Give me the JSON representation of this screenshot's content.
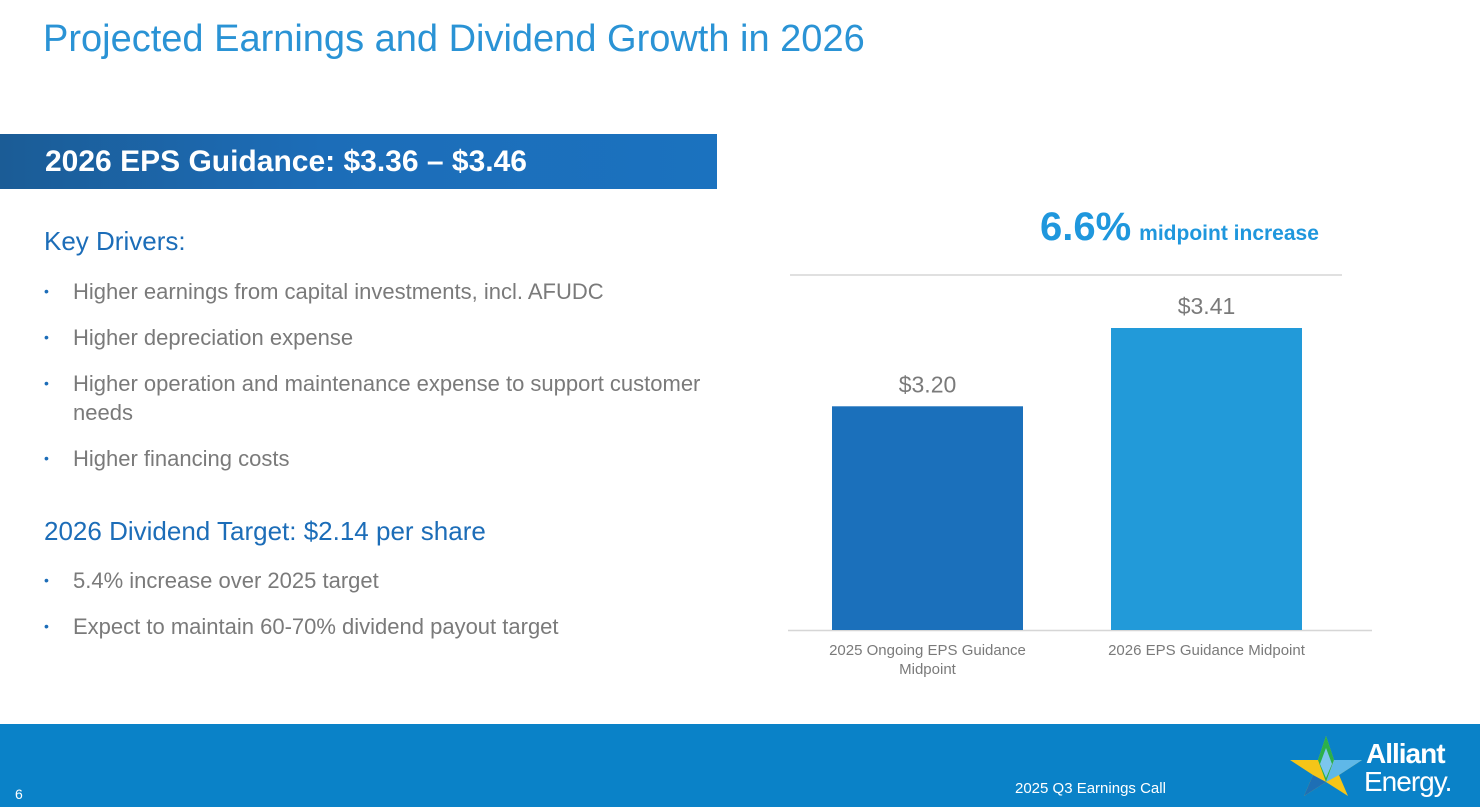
{
  "slide": {
    "title": "Projected Earnings and Dividend Growth in 2026",
    "banner": "2026 EPS Guidance: $3.36 – $3.46",
    "key_drivers": {
      "heading": "Key Drivers:",
      "bullets": [
        "Higher earnings from capital investments, incl. AFUDC",
        "Higher depreciation expense",
        "Higher operation and maintenance expense to support customer needs",
        "Higher financing costs"
      ]
    },
    "dividend": {
      "heading": "2026 Dividend Target: $2.14 per share",
      "bullets": [
        "5.4% increase over 2025 target",
        "Expect to maintain 60-70% dividend payout target"
      ]
    },
    "bullet_glyph": "•",
    "highlight": {
      "value": "6.6%",
      "label": "midpoint increase"
    },
    "footer": {
      "page_number": "6",
      "event": "2025 Q3 Earnings Call",
      "logo_line1": "Alliant",
      "logo_line2": "Energy."
    }
  },
  "colors": {
    "title": "#2a93d5",
    "banner": "#1c6db8",
    "bar_2025": "#1b70bb",
    "bar_2026": "#229ad9",
    "footer": "#0a82c8",
    "body_text": "#7a7a7a"
  },
  "chart_data": {
    "type": "bar",
    "categories": [
      "2025 Ongoing EPS Guidance Midpoint",
      "2026 EPS Guidance Midpoint"
    ],
    "values": [
      3.2,
      3.41
    ],
    "data_labels": [
      "$3.20",
      "$3.41"
    ],
    "bar_colors": [
      "#1b70bb",
      "#229ad9"
    ],
    "title": "",
    "xlabel": "",
    "ylabel": "",
    "ylim": [
      2.6,
      3.41
    ],
    "grid": false,
    "legend": "none"
  }
}
